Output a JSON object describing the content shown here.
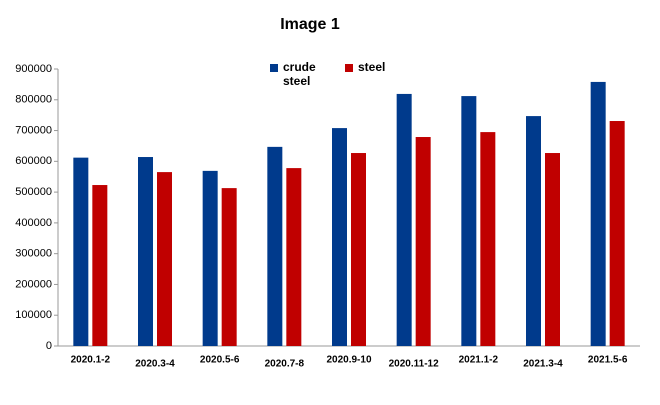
{
  "chart_data": {
    "type": "bar",
    "title": "Image 1",
    "categories": [
      "2020.1-2",
      "2020.3-4",
      "2020.5-6",
      "2020.7-8",
      "2020.9-10",
      "2020.11-12",
      "2021.1-2",
      "2021.3-4",
      "2021.5-6"
    ],
    "series": [
      {
        "name": "crude steel",
        "color": "#003a8c",
        "values": [
          612000,
          614000,
          569000,
          647000,
          708000,
          819000,
          812000,
          747000,
          858000
        ]
      },
      {
        "name": "steel",
        "color": "#c00000",
        "values": [
          523000,
          565000,
          513000,
          578000,
          627000,
          679000,
          695000,
          627000,
          731000
        ]
      }
    ],
    "ylim": [
      0,
      900000
    ],
    "yticks": [
      0,
      100000,
      200000,
      300000,
      400000,
      500000,
      600000,
      700000,
      800000,
      900000
    ],
    "grid": false
  }
}
